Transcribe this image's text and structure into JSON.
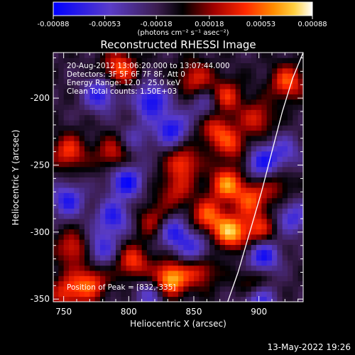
{
  "chart_data": {
    "type": "heatmap",
    "title": "Reconstructed RHESSI Image",
    "xlabel": "Heliocentric X (arcsec)",
    "ylabel": "Heliocentric Y (arcsec)",
    "xlim": [
      742,
      934
    ],
    "ylim": [
      -352,
      -166
    ],
    "x_ticks": [
      "750",
      "800",
      "850",
      "900"
    ],
    "x_tick_values": [
      750,
      800,
      850,
      900
    ],
    "y_ticks": [
      "-200",
      "-250",
      "-300",
      "-350"
    ],
    "y_tick_values": [
      -200,
      -250,
      -300,
      -350
    ],
    "colorbar": {
      "min": -0.00088,
      "max": 0.00088,
      "tick_labels": [
        "-0.00088",
        "-0.00053",
        "-0.00018",
        "0.00018",
        "0.00053",
        "0.00088"
      ],
      "tick_values": [
        -0.00088,
        -0.00053,
        -0.00018,
        0.00018,
        0.00053,
        0.00088
      ],
      "unit_label": "(photons cm⁻² s⁻¹ asec⁻²)"
    },
    "annotations": [
      "20-Aug-2012 13:06:20.000 to 13:07:44.000",
      "Detectors: 3F 5F 6F 7F 8F, Att 0",
      "Energy Range: 12.0 - 25.0 keV",
      "Clean     Total counts: 1.50E+03"
    ],
    "peak_label": "Position of Peak = [832,-335]",
    "peak": [
      832,
      -335
    ],
    "limb_curve": {
      "x": [
        876,
        884,
        893,
        902,
        910,
        918,
        926,
        934
      ],
      "y": [
        -352,
        -330,
        -300,
        -270,
        -240,
        -210,
        -185,
        -166
      ]
    },
    "blobs": [
      {
        "x": 793,
        "y": -178,
        "v": 0.00062
      },
      {
        "x": 851,
        "y": -185,
        "v": 0.00048
      },
      {
        "x": 754,
        "y": -240,
        "v": 0.00055
      },
      {
        "x": 788,
        "y": -241,
        "v": 0.00045
      },
      {
        "x": 874,
        "y": -199,
        "v": 0.00055
      },
      {
        "x": 866,
        "y": -223,
        "v": 0.0005
      },
      {
        "x": 880,
        "y": -235,
        "v": 0.00045
      },
      {
        "x": 899,
        "y": -215,
        "v": 0.00045
      },
      {
        "x": 922,
        "y": -188,
        "v": 0.0006
      },
      {
        "x": 842,
        "y": -248,
        "v": 0.00055
      },
      {
        "x": 875,
        "y": -264,
        "v": 0.0007
      },
      {
        "x": 894,
        "y": -275,
        "v": 0.00055
      },
      {
        "x": 860,
        "y": -288,
        "v": 0.0006
      },
      {
        "x": 878,
        "y": -300,
        "v": 0.0008
      },
      {
        "x": 900,
        "y": -298,
        "v": 0.0005
      },
      {
        "x": 836,
        "y": -269,
        "v": 0.0004
      },
      {
        "x": 819,
        "y": -291,
        "v": 0.0004
      },
      {
        "x": 803,
        "y": -322,
        "v": 0.00055
      },
      {
        "x": 832,
        "y": -335,
        "v": 0.00088
      },
      {
        "x": 855,
        "y": -328,
        "v": 0.0005
      },
      {
        "x": 757,
        "y": -312,
        "v": 0.0005
      },
      {
        "x": 770,
        "y": -338,
        "v": 0.0006
      },
      {
        "x": 752,
        "y": -345,
        "v": 0.0005
      },
      {
        "x": 896,
        "y": -338,
        "v": 0.0004
      },
      {
        "x": 914,
        "y": -265,
        "v": 0.0003
      },
      {
        "x": 778,
        "y": -197,
        "v": -0.0006
      },
      {
        "x": 817,
        "y": -202,
        "v": -0.0007
      },
      {
        "x": 833,
        "y": -223,
        "v": -0.00065
      },
      {
        "x": 798,
        "y": -262,
        "v": -0.0007
      },
      {
        "x": 753,
        "y": -276,
        "v": -0.0006
      },
      {
        "x": 788,
        "y": -289,
        "v": -0.0006
      },
      {
        "x": 779,
        "y": -312,
        "v": -0.0005
      },
      {
        "x": 835,
        "y": -300,
        "v": -0.0006
      },
      {
        "x": 852,
        "y": -313,
        "v": -0.0005
      },
      {
        "x": 902,
        "y": -248,
        "v": -0.0006
      },
      {
        "x": 903,
        "y": -318,
        "v": -0.0007
      },
      {
        "x": 926,
        "y": -289,
        "v": -0.0005
      },
      {
        "x": 920,
        "y": -240,
        "v": -0.0004
      },
      {
        "x": 860,
        "y": -205,
        "v": -0.0004
      },
      {
        "x": 817,
        "y": -347,
        "v": -0.0004
      },
      {
        "x": 900,
        "y": -350,
        "v": -0.0006
      },
      {
        "x": 805,
        "y": -230,
        "v": -0.0003
      }
    ],
    "grid": false,
    "legend": "none"
  },
  "footer": {
    "date_stamp": "13-May-2022 19:26"
  },
  "colors": {
    "background": "#000000",
    "foreground": "#ffffff",
    "colormap": [
      "#0000ff",
      "#5a3cc8",
      "#3c1e50",
      "#000000",
      "#a00000",
      "#ff2800",
      "#ff8c00",
      "#ffd040",
      "#ffffff"
    ]
  }
}
